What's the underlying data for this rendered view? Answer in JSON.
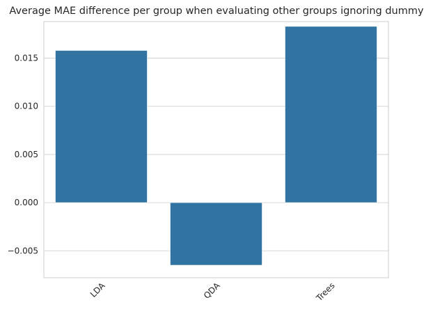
{
  "chart_data": {
    "type": "bar",
    "title": "Average MAE difference per group when evaluating other groups ignoring dummy",
    "xlabel": "",
    "ylabel": "",
    "categories": [
      "LDA",
      "QDA",
      "Trees"
    ],
    "values": [
      0.0158,
      -0.0065,
      0.0183
    ],
    "ylim": [
      -0.0078,
      0.0188
    ],
    "yticks": [
      -0.005,
      0.0,
      0.005,
      0.01,
      0.015
    ],
    "ytick_labels": [
      "−0.005",
      "0.000",
      "0.005",
      "0.010",
      "0.015"
    ],
    "x_tick_rotation_deg": 45,
    "grid": "y",
    "legend": "none",
    "colors": {
      "bar": "#3274a1",
      "grid": "#cccccc",
      "spine": "#cccccc",
      "text": "#262626"
    }
  }
}
